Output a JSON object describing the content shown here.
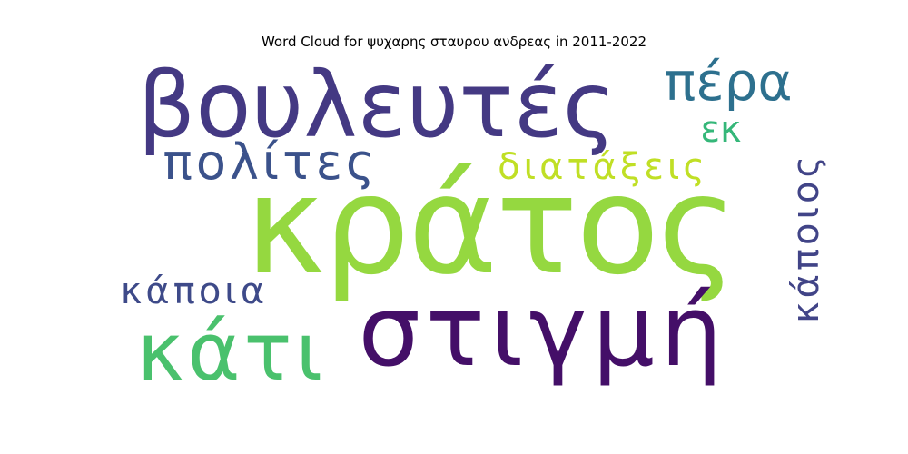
{
  "chart_data": {
    "type": "wordcloud",
    "title": "Word Cloud for ψυχαρης σταυρου ανδρεας in 2011-2022",
    "words": [
      {
        "text": "κράτος",
        "weight": 1.0,
        "color": "#95d840"
      },
      {
        "text": "στιγμή",
        "weight": 0.8,
        "color": "#440f68"
      },
      {
        "text": "βουλευτές",
        "weight": 0.72,
        "color": "#443983"
      },
      {
        "text": "κάτι",
        "weight": 0.62,
        "color": "#4ac16d"
      },
      {
        "text": "πέρα",
        "weight": 0.45,
        "color": "#2d708e"
      },
      {
        "text": "πολίτες",
        "weight": 0.42,
        "color": "#3b528b"
      },
      {
        "text": "διατάξεις",
        "weight": 0.33,
        "color": "#c0df25"
      },
      {
        "text": "κάποια",
        "weight": 0.3,
        "color": "#3e4a89"
      },
      {
        "text": "κάποιος",
        "weight": 0.3,
        "color": "#414487"
      },
      {
        "text": "εκ",
        "weight": 0.28,
        "color": "#35b779"
      }
    ]
  }
}
